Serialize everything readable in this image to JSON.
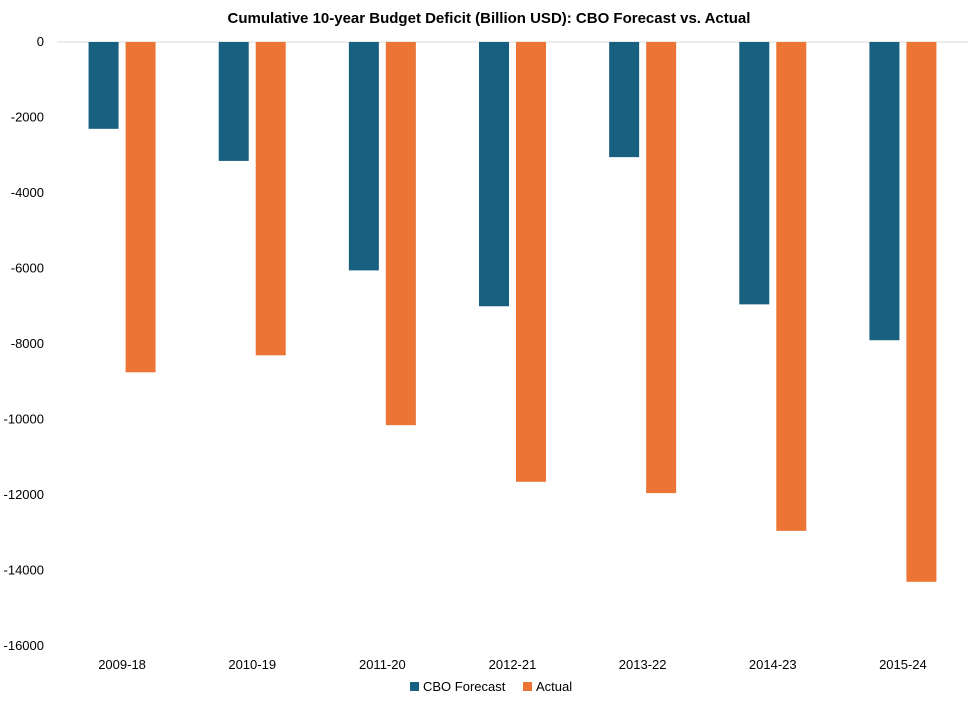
{
  "chart_data": {
    "type": "bar",
    "title": "Cumulative 10-year Budget Deficit (Billion USD): CBO Forecast vs. Actual",
    "xlabel": "",
    "ylabel": "",
    "categories": [
      "2009-18",
      "2010-19",
      "2011-20",
      "2012-21",
      "2013-22",
      "2014-23",
      "2015-24"
    ],
    "series": [
      {
        "name": "CBO Forecast",
        "color": "#17607F",
        "values": [
          -2300,
          -3150,
          -6050,
          -7000,
          -3050,
          -6950,
          -7900
        ]
      },
      {
        "name": "Actual",
        "color": "#EC7535",
        "values": [
          -8750,
          -8300,
          -10150,
          -11650,
          -11950,
          -12950,
          -14300
        ]
      }
    ],
    "ylim": [
      -16000,
      0
    ],
    "yticks": [
      "0",
      "-2000",
      "-4000",
      "-6000",
      "-8000",
      "-10000",
      "-12000",
      "-14000",
      "-16000"
    ],
    "ytick_values": [
      0,
      -2000,
      -4000,
      -6000,
      -8000,
      -10000,
      -12000,
      -14000,
      -16000
    ],
    "grid": true,
    "legend_position": "bottom"
  }
}
